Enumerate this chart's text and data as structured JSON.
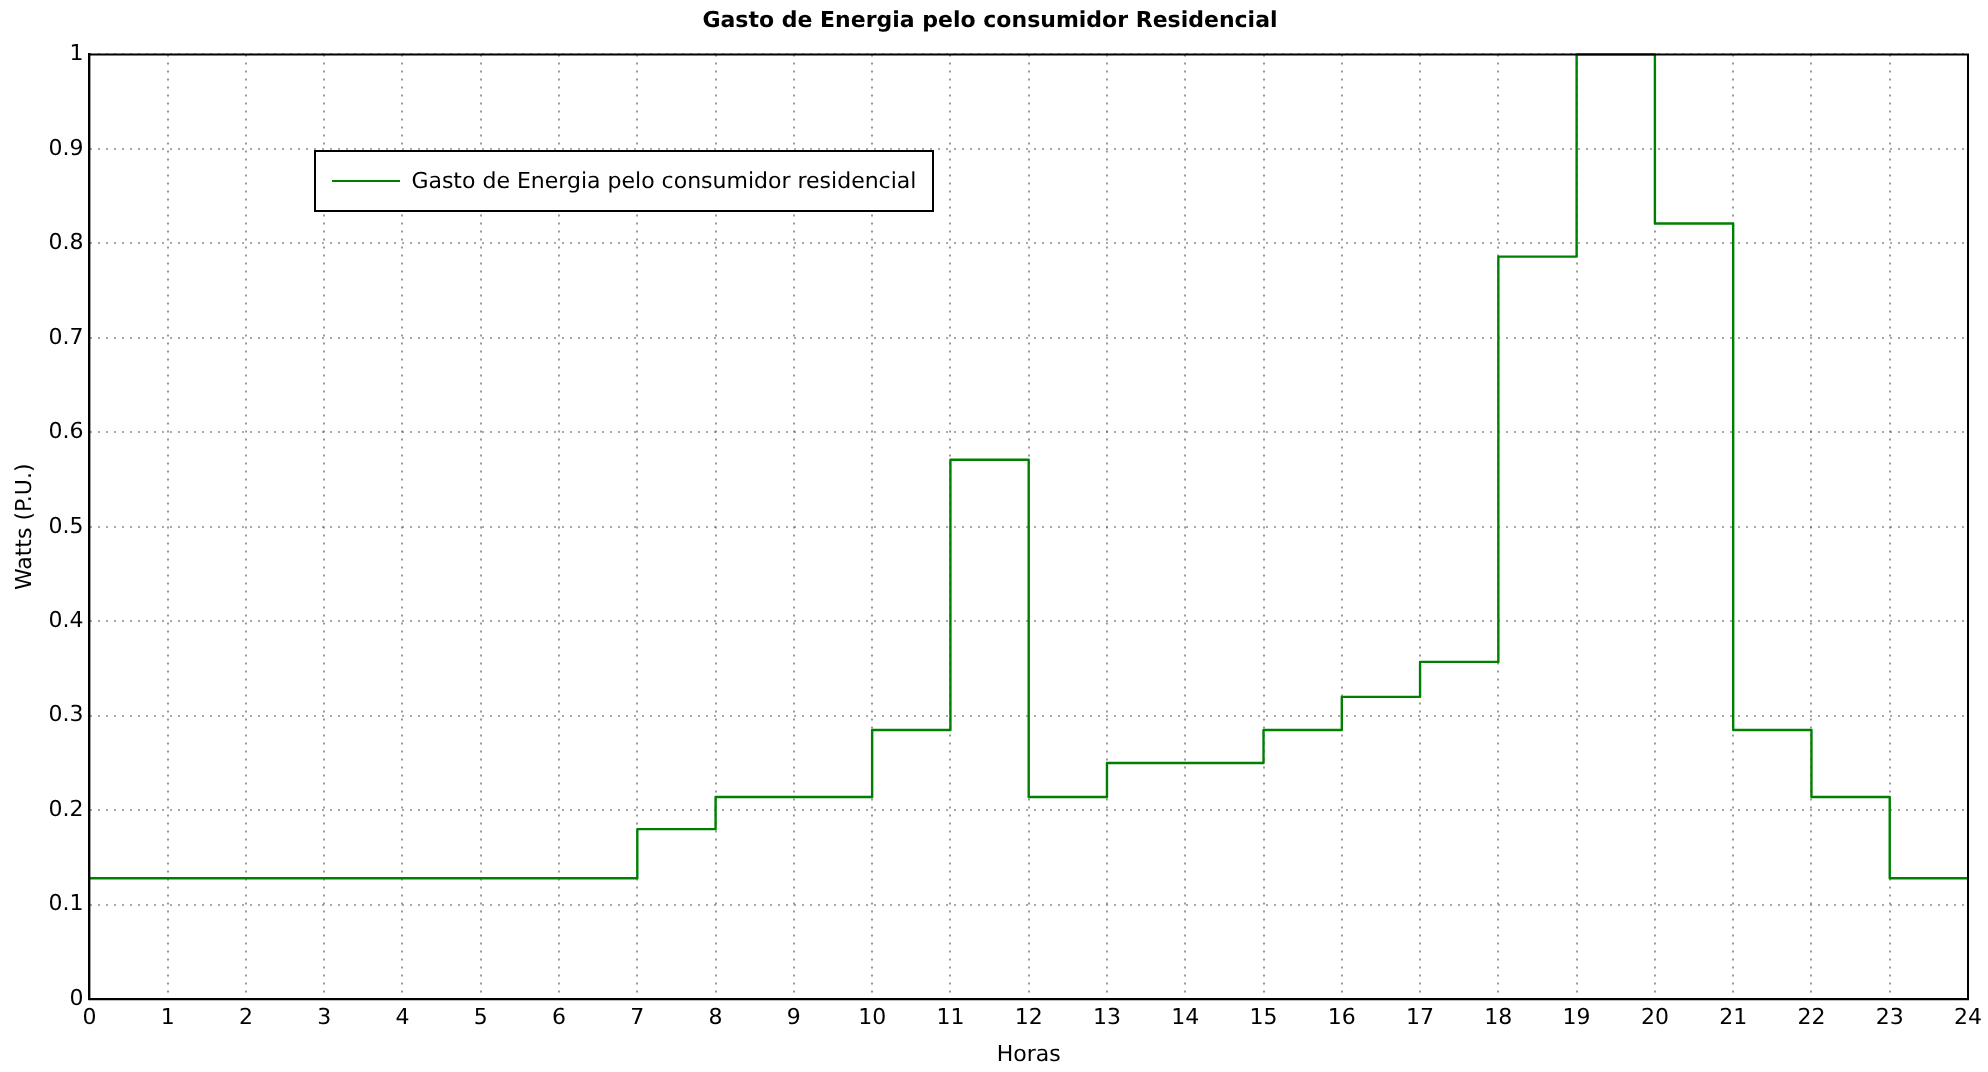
{
  "chart_data": {
    "type": "step",
    "title": "Gasto de Energia pelo consumidor Residencial",
    "xlabel": "Horas",
    "ylabel": "Watts (P.U.)",
    "x": [
      0,
      7,
      8,
      10,
      11,
      12,
      13,
      15,
      16,
      17,
      18,
      19,
      20,
      21,
      22,
      23,
      24
    ],
    "series": [
      {
        "name": "Gasto de Energia pelo consumidor residencial",
        "color": "#008000",
        "values": [
          0.128,
          0.18,
          0.214,
          0.285,
          0.571,
          0.214,
          0.25,
          0.285,
          0.32,
          0.357,
          0.786,
          1,
          0.821,
          0.285,
          0.214,
          0.128,
          0.128
        ]
      }
    ],
    "xlim": [
      0,
      24
    ],
    "xticks": [
      0,
      1,
      2,
      3,
      4,
      5,
      6,
      7,
      8,
      9,
      10,
      11,
      12,
      13,
      14,
      15,
      16,
      17,
      18,
      19,
      20,
      21,
      22,
      23,
      24
    ],
    "ylim": [
      0,
      1
    ],
    "yticks": [
      0,
      0.1,
      0.2,
      0.3,
      0.4,
      0.5,
      0.6,
      0.7,
      0.8,
      0.9,
      1
    ],
    "grid": true,
    "legend": "top left"
  }
}
